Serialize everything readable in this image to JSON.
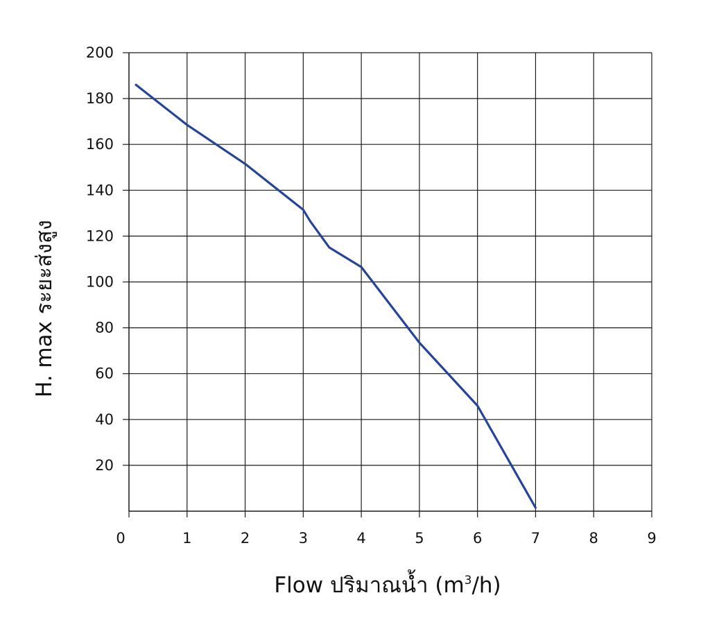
{
  "chart_data": {
    "type": "line",
    "title": "",
    "xlabel": "Flow  ปริมาณน้ำ (m",
    "xlabel_superscript": "3",
    "xlabel_suffix": "/h)",
    "ylabel": "H. max  ระยะส่งสูง",
    "xlim": [
      0,
      9
    ],
    "ylim": [
      0,
      200
    ],
    "x_ticks": [
      0,
      1,
      2,
      3,
      4,
      5,
      6,
      7,
      8,
      9
    ],
    "x_tick_labels": [
      "0",
      "1",
      "2",
      "3",
      "4",
      "5",
      "6",
      "7",
      "8",
      "9"
    ],
    "y_ticks": [
      20,
      40,
      60,
      80,
      100,
      120,
      140,
      160,
      180,
      200
    ],
    "y_tick_labels": [
      "20",
      "40",
      "60",
      "80",
      "100",
      "120",
      "140",
      "160",
      "180",
      "200"
    ],
    "grid": true,
    "legend": "none",
    "series": [
      {
        "color": "#24449a",
        "points": [
          [
            0.12,
            186
          ],
          [
            1,
            168.5
          ],
          [
            2,
            151.5
          ],
          [
            3,
            131.5
          ],
          [
            3.12,
            126.5
          ],
          [
            3.45,
            115
          ],
          [
            4,
            106.5
          ],
          [
            5,
            73.5
          ],
          [
            6,
            46
          ],
          [
            7,
            1.5
          ]
        ]
      }
    ]
  }
}
